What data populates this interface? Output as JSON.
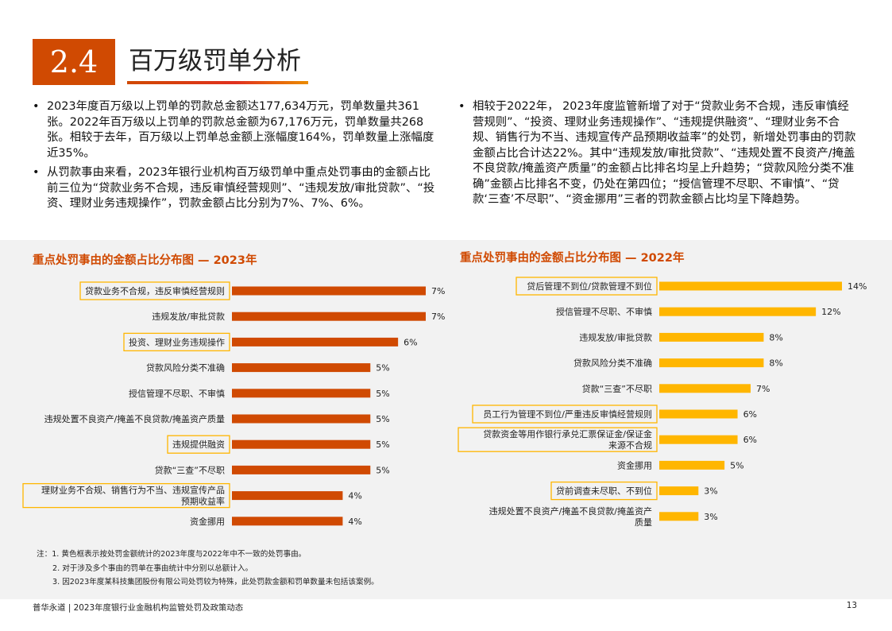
{
  "section": {
    "number": "2.4",
    "title": "百万级罚单分析"
  },
  "bullets_left": [
    "2023年度百万级以上罚单的罚款总金额达177,634万元，罚单数量共361张。2022年百万级以上罚单的罚款总金额为67,176万元，罚单数量共268张。相较于去年，百万级以上罚单总金额上涨幅度164%，罚单数量上涨幅度近35%。",
    "从罚款事由来看，2023年银行业机构百万级罚单中重点处罚事由的金额占比前三位为“贷款业务不合规，违反审慎经营规则”、“违规发放/审批贷款”、“投资、理财业务违规操作”，罚款金额占比分别为7%、7%、6%。"
  ],
  "bullets_right": [
    "相较于2022年， 2023年度监管新增了对于“贷款业务不合规，违反审慎经营规则”、“投资、理财业务违规操作”、“违规提供融资”、“理财业务不合规、销售行为不当、违规宣传产品预期收益率”的处罚，新增处罚事由的罚款金额占比合计达22%。其中“违规发放/审批贷款”、“违规处置不良资产/掩盖不良贷款/掩盖资产质量”的金额占比排名均呈上升趋势；“贷款风险分类不准确”金额占比排名不变，仍处在第四位；“授信管理不尽职、不审慎”、“贷款‘三查’不尽职”、“资金挪用”三者的罚款金额占比均呈下降趋势。"
  ],
  "chart_data": [
    {
      "type": "bar",
      "orientation": "horizontal",
      "title": "重点处罚事由的金额占比分布图 — 2023年",
      "color": "#d04a02",
      "highlight_color": "#ffb600",
      "categories": [
        [
          "贷款业务不合规，违反审慎经营规则"
        ],
        [
          "违规发放/审批贷款"
        ],
        [
          "投资、理财业务违规操作"
        ],
        [
          "贷款风险分类不准确"
        ],
        [
          "授信管理不尽职、不审慎"
        ],
        [
          "违规处置不良资产/掩盖不良贷款/掩盖资产质量"
        ],
        [
          "违规提供融资"
        ],
        [
          "贷款“三查”不尽职"
        ],
        [
          "理财业务不合规、销售行为不当、违规宣传产品",
          "预期收益率"
        ],
        [
          "资金挪用"
        ]
      ],
      "values": [
        7,
        7,
        6,
        5,
        5,
        5,
        5,
        5,
        4,
        4
      ],
      "value_labels": [
        "7%",
        "7%",
        "6%",
        "5%",
        "5%",
        "5%",
        "5%",
        "5%",
        "4%",
        "4%"
      ],
      "highlighted": [
        true,
        false,
        true,
        false,
        false,
        false,
        true,
        false,
        true,
        false
      ]
    },
    {
      "type": "bar",
      "orientation": "horizontal",
      "title": "重点处罚事由的金额占比分布图 — 2022年",
      "color": "#ffb600",
      "highlight_color": "#ffb600",
      "categories": [
        [
          "贷后管理不到位/贷款管理不到位"
        ],
        [
          "授信管理不尽职、不审慎"
        ],
        [
          "违规发放/审批贷款"
        ],
        [
          "贷款风险分类不准确"
        ],
        [
          "贷款“三查”不尽职"
        ],
        [
          "员工行为管理不到位/严重违反审慎经营规则"
        ],
        [
          "贷款资金等用作银行承兑汇票保证金/保证金",
          "来源不合规"
        ],
        [
          "资金挪用"
        ],
        [
          "贷前调查未尽职、不到位"
        ],
        [
          "违规处置不良资产/掩盖不良贷款/掩盖资产",
          "质量"
        ]
      ],
      "values": [
        14,
        12,
        8,
        8,
        7,
        6,
        6,
        5,
        3,
        3
      ],
      "value_labels": [
        "14%",
        "12%",
        "8%",
        "8%",
        "7%",
        "6%",
        "6%",
        "5%",
        "3%",
        "3%"
      ],
      "highlighted": [
        true,
        false,
        false,
        false,
        false,
        true,
        true,
        false,
        true,
        false
      ]
    }
  ],
  "notes": {
    "prefix": "注：",
    "items": [
      "1. 黄色框表示按处罚金额统计的2023年度与2022年中不一致的处罚事由。",
      "2. 对于涉及多个事由的罚单在事由统计中分别以总额计入。",
      "3. 因2023年度某科技集团股份有限公司处罚较为特殊，此处罚款金额和罚单数量未包括该案例。"
    ]
  },
  "footer": {
    "text": "普华永道 | 2023年度银行业金融机构监管处罚及政策动态",
    "page": "13"
  }
}
